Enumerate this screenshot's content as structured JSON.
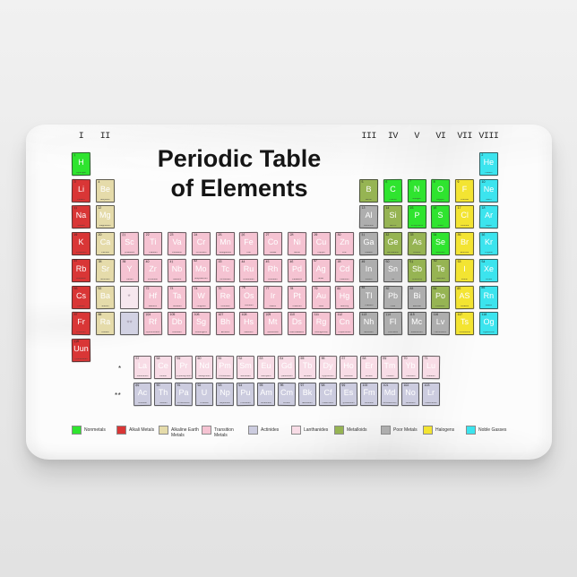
{
  "title": {
    "line1": "Periodic Table",
    "line2": "of Elements"
  },
  "group_labels": [
    {
      "text": "I",
      "col": 1
    },
    {
      "text": "II",
      "col": 2
    },
    {
      "text": "III",
      "col": 13
    },
    {
      "text": "IV",
      "col": 14
    },
    {
      "text": "V",
      "col": 15
    },
    {
      "text": "VI",
      "col": 16
    },
    {
      "text": "VII",
      "col": 17
    },
    {
      "text": "VIII",
      "col": 18
    }
  ],
  "category_colors": {
    "nonmetal": "#2fe42f",
    "alkali": "#d93636",
    "alkaline": "#e5dbaa",
    "transition": "#f5c3d2",
    "lanthanide": "#f8dce6",
    "actinide": "#ccccdf",
    "metalloid": "#96b453",
    "poor": "#aeaeae",
    "halogen": "#f3e432",
    "noble": "#3ce4ee",
    "lan_ph": "#f6e7ee",
    "act_ph": "#d2d2e3"
  },
  "elements": [
    {
      "n": "1",
      "sym": "H",
      "name": "Hydrogen",
      "cat": "nonmetal",
      "row": 1,
      "col": 1
    },
    {
      "n": "2",
      "sym": "He",
      "name": "Helium",
      "cat": "noble",
      "row": 1,
      "col": 18
    },
    {
      "n": "3",
      "sym": "Li",
      "name": "Lithium",
      "cat": "alkali",
      "row": 2,
      "col": 1
    },
    {
      "n": "4",
      "sym": "Be",
      "name": "Beryllium",
      "cat": "alkaline",
      "row": 2,
      "col": 2
    },
    {
      "n": "5",
      "sym": "B",
      "name": "Boron",
      "cat": "metalloid",
      "row": 2,
      "col": 13
    },
    {
      "n": "6",
      "sym": "C",
      "name": "Carbon",
      "cat": "nonmetal",
      "row": 2,
      "col": 14
    },
    {
      "n": "7",
      "sym": "N",
      "name": "Nitrogen",
      "cat": "nonmetal",
      "row": 2,
      "col": 15
    },
    {
      "n": "8",
      "sym": "O",
      "name": "Oxygen",
      "cat": "nonmetal",
      "row": 2,
      "col": 16
    },
    {
      "n": "9",
      "sym": "F",
      "name": "Fluorine",
      "cat": "halogen",
      "row": 2,
      "col": 17
    },
    {
      "n": "10",
      "sym": "Ne",
      "name": "Neon",
      "cat": "noble",
      "row": 2,
      "col": 18
    },
    {
      "n": "11",
      "sym": "Na",
      "name": "Sodium",
      "cat": "alkali",
      "row": 3,
      "col": 1
    },
    {
      "n": "12",
      "sym": "Mg",
      "name": "Magnesium",
      "cat": "alkaline",
      "row": 3,
      "col": 2
    },
    {
      "n": "13",
      "sym": "Al",
      "name": "Aluminum",
      "cat": "poor",
      "row": 3,
      "col": 13
    },
    {
      "n": "14",
      "sym": "Si",
      "name": "Silicon",
      "cat": "metalloid",
      "row": 3,
      "col": 14
    },
    {
      "n": "15",
      "sym": "P",
      "name": "Phosphorus",
      "cat": "nonmetal",
      "row": 3,
      "col": 15
    },
    {
      "n": "16",
      "sym": "S",
      "name": "Sulfur",
      "cat": "nonmetal",
      "row": 3,
      "col": 16
    },
    {
      "n": "17",
      "sym": "Cl",
      "name": "Chlorine",
      "cat": "halogen",
      "row": 3,
      "col": 17
    },
    {
      "n": "18",
      "sym": "Ar",
      "name": "Argon",
      "cat": "noble",
      "row": 3,
      "col": 18
    },
    {
      "n": "19",
      "sym": "K",
      "name": "Potassium",
      "cat": "alkali",
      "row": 4,
      "col": 1
    },
    {
      "n": "20",
      "sym": "Ca",
      "name": "Calcium",
      "cat": "alkaline",
      "row": 4,
      "col": 2
    },
    {
      "n": "21",
      "sym": "Sc",
      "name": "Scandium",
      "cat": "transition",
      "row": 4,
      "col": 3
    },
    {
      "n": "22",
      "sym": "Ti",
      "name": "Titanium",
      "cat": "transition",
      "row": 4,
      "col": 4
    },
    {
      "n": "23",
      "sym": "Va",
      "name": "Vanadium",
      "cat": "transition",
      "row": 4,
      "col": 5
    },
    {
      "n": "24",
      "sym": "Cr",
      "name": "Chromium",
      "cat": "transition",
      "row": 4,
      "col": 6
    },
    {
      "n": "25",
      "sym": "Mn",
      "name": "Manganese",
      "cat": "transition",
      "row": 4,
      "col": 7
    },
    {
      "n": "26",
      "sym": "Fe",
      "name": "Iron",
      "cat": "transition",
      "row": 4,
      "col": 8
    },
    {
      "n": "27",
      "sym": "Co",
      "name": "Cobalt",
      "cat": "transition",
      "row": 4,
      "col": 9
    },
    {
      "n": "28",
      "sym": "Ni",
      "name": "Nickel",
      "cat": "transition",
      "row": 4,
      "col": 10
    },
    {
      "n": "29",
      "sym": "Cu",
      "name": "Copper",
      "cat": "transition",
      "row": 4,
      "col": 11
    },
    {
      "n": "30",
      "sym": "Zn",
      "name": "Zinc",
      "cat": "transition",
      "row": 4,
      "col": 12
    },
    {
      "n": "31",
      "sym": "Ga",
      "name": "Gallium",
      "cat": "poor",
      "row": 4,
      "col": 13
    },
    {
      "n": "32",
      "sym": "Ge",
      "name": "Germanium",
      "cat": "metalloid",
      "row": 4,
      "col": 14
    },
    {
      "n": "33",
      "sym": "As",
      "name": "Arsenic",
      "cat": "metalloid",
      "row": 4,
      "col": 15
    },
    {
      "n": "34",
      "sym": "Se",
      "name": "Selenium",
      "cat": "nonmetal",
      "row": 4,
      "col": 16
    },
    {
      "n": "35",
      "sym": "Br",
      "name": "Bromine",
      "cat": "halogen",
      "row": 4,
      "col": 17
    },
    {
      "n": "36",
      "sym": "Kr",
      "name": "Krypton",
      "cat": "noble",
      "row": 4,
      "col": 18
    },
    {
      "n": "37",
      "sym": "Rb",
      "name": "Rubidium",
      "cat": "alkali",
      "row": 5,
      "col": 1
    },
    {
      "n": "38",
      "sym": "Sr",
      "name": "Strontium",
      "cat": "alkaline",
      "row": 5,
      "col": 2
    },
    {
      "n": "39",
      "sym": "Y",
      "name": "Yttrium",
      "cat": "transition",
      "row": 5,
      "col": 3
    },
    {
      "n": "40",
      "sym": "Zr",
      "name": "Zirconium",
      "cat": "transition",
      "row": 5,
      "col": 4
    },
    {
      "n": "41",
      "sym": "Nb",
      "name": "Niobium",
      "cat": "transition",
      "row": 5,
      "col": 5
    },
    {
      "n": "42",
      "sym": "Mo",
      "name": "Molybdenum",
      "cat": "transition",
      "row": 5,
      "col": 6
    },
    {
      "n": "43",
      "sym": "Tc",
      "name": "Technetium",
      "cat": "transition",
      "row": 5,
      "col": 7
    },
    {
      "n": "44",
      "sym": "Ru",
      "name": "Ruthenium",
      "cat": "transition",
      "row": 5,
      "col": 8
    },
    {
      "n": "45",
      "sym": "Rh",
      "name": "Rhodium",
      "cat": "transition",
      "row": 5,
      "col": 9
    },
    {
      "n": "46",
      "sym": "Pd",
      "name": "Palladium",
      "cat": "transition",
      "row": 5,
      "col": 10
    },
    {
      "n": "47",
      "sym": "Ag",
      "name": "Silver",
      "cat": "transition",
      "row": 5,
      "col": 11
    },
    {
      "n": "48",
      "sym": "Cd",
      "name": "Cadmium",
      "cat": "transition",
      "row": 5,
      "col": 12
    },
    {
      "n": "49",
      "sym": "In",
      "name": "Indium",
      "cat": "poor",
      "row": 5,
      "col": 13
    },
    {
      "n": "50",
      "sym": "Sn",
      "name": "Tin",
      "cat": "poor",
      "row": 5,
      "col": 14
    },
    {
      "n": "51",
      "sym": "Sb",
      "name": "Antimony",
      "cat": "metalloid",
      "row": 5,
      "col": 15
    },
    {
      "n": "52",
      "sym": "Te",
      "name": "Tellurium",
      "cat": "metalloid",
      "row": 5,
      "col": 16
    },
    {
      "n": "53",
      "sym": "I",
      "name": "Iodine",
      "cat": "halogen",
      "row": 5,
      "col": 17
    },
    {
      "n": "54",
      "sym": "Xe",
      "name": "Xenon",
      "cat": "noble",
      "row": 5,
      "col": 18
    },
    {
      "n": "55",
      "sym": "Cs",
      "name": "Cesium",
      "cat": "alkali",
      "row": 6,
      "col": 1
    },
    {
      "n": "56",
      "sym": "Ba",
      "name": "Barium",
      "cat": "alkaline",
      "row": 6,
      "col": 2
    },
    {
      "n": "",
      "sym": "*",
      "name": "",
      "cat": "lan_ph",
      "row": 6,
      "col": 3
    },
    {
      "n": "72",
      "sym": "Hf",
      "name": "Hafnium",
      "cat": "transition",
      "row": 6,
      "col": 4
    },
    {
      "n": "73",
      "sym": "Ta",
      "name": "Tantalum",
      "cat": "transition",
      "row": 6,
      "col": 5
    },
    {
      "n": "74",
      "sym": "W",
      "name": "Tungsten",
      "cat": "transition",
      "row": 6,
      "col": 6
    },
    {
      "n": "75",
      "sym": "Re",
      "name": "Rhenium",
      "cat": "transition",
      "row": 6,
      "col": 7
    },
    {
      "n": "76",
      "sym": "Os",
      "name": "Osmium",
      "cat": "transition",
      "row": 6,
      "col": 8
    },
    {
      "n": "77",
      "sym": "Ir",
      "name": "Iridium",
      "cat": "transition",
      "row": 6,
      "col": 9
    },
    {
      "n": "78",
      "sym": "Pt",
      "name": "Platinum",
      "cat": "transition",
      "row": 6,
      "col": 10
    },
    {
      "n": "79",
      "sym": "Au",
      "name": "Gold",
      "cat": "transition",
      "row": 6,
      "col": 11
    },
    {
      "n": "80",
      "sym": "Hg",
      "name": "Mercury",
      "cat": "transition",
      "row": 6,
      "col": 12
    },
    {
      "n": "81",
      "sym": "Tl",
      "name": "Thallium",
      "cat": "poor",
      "row": 6,
      "col": 13
    },
    {
      "n": "82",
      "sym": "Pb",
      "name": "Lead",
      "cat": "poor",
      "row": 6,
      "col": 14
    },
    {
      "n": "83",
      "sym": "Bi",
      "name": "Bismuth",
      "cat": "poor",
      "row": 6,
      "col": 15
    },
    {
      "n": "84",
      "sym": "Po",
      "name": "Polonium",
      "cat": "metalloid",
      "row": 6,
      "col": 16
    },
    {
      "n": "85",
      "sym": "AS",
      "name": "Astatine",
      "cat": "halogen",
      "row": 6,
      "col": 17
    },
    {
      "n": "86",
      "sym": "Rn",
      "name": "Radon",
      "cat": "noble",
      "row": 6,
      "col": 18
    },
    {
      "n": "87",
      "sym": "Fr",
      "name": "Francium",
      "cat": "alkali",
      "row": 7,
      "col": 1
    },
    {
      "n": "88",
      "sym": "Ra",
      "name": "Radium",
      "cat": "alkaline",
      "row": 7,
      "col": 2
    },
    {
      "n": "",
      "sym": "**",
      "name": "",
      "cat": "act_ph",
      "row": 7,
      "col": 3
    },
    {
      "n": "104",
      "sym": "Rf",
      "name": "Rutherfordium",
      "cat": "transition",
      "row": 7,
      "col": 4
    },
    {
      "n": "105",
      "sym": "Db",
      "name": "Dubnium",
      "cat": "transition",
      "row": 7,
      "col": 5
    },
    {
      "n": "106",
      "sym": "Sg",
      "name": "Seaborgium",
      "cat": "transition",
      "row": 7,
      "col": 6
    },
    {
      "n": "107",
      "sym": "Bh",
      "name": "Bohrium",
      "cat": "transition",
      "row": 7,
      "col": 7
    },
    {
      "n": "108",
      "sym": "Hs",
      "name": "Hassium",
      "cat": "transition",
      "row": 7,
      "col": 8
    },
    {
      "n": "109",
      "sym": "Mt",
      "name": "Meitnerium",
      "cat": "transition",
      "row": 7,
      "col": 9
    },
    {
      "n": "110",
      "sym": "Ds",
      "name": "Darmstadtium",
      "cat": "transition",
      "row": 7,
      "col": 10
    },
    {
      "n": "111",
      "sym": "Rg",
      "name": "Roentgenium",
      "cat": "transition",
      "row": 7,
      "col": 11
    },
    {
      "n": "112",
      "sym": "Cn",
      "name": "Copernicium",
      "cat": "transition",
      "row": 7,
      "col": 12
    },
    {
      "n": "113",
      "sym": "Nh",
      "name": "Nihonium",
      "cat": "poor",
      "row": 7,
      "col": 13
    },
    {
      "n": "114",
      "sym": "Fl",
      "name": "Flerovium",
      "cat": "poor",
      "row": 7,
      "col": 14
    },
    {
      "n": "115",
      "sym": "Mc",
      "name": "Moscovium",
      "cat": "poor",
      "row": 7,
      "col": 15
    },
    {
      "n": "116",
      "sym": "Lv",
      "name": "Livermorium",
      "cat": "poor",
      "row": 7,
      "col": 16
    },
    {
      "n": "117",
      "sym": "Ts",
      "name": "Tennessine",
      "cat": "halogen",
      "row": 7,
      "col": 17
    },
    {
      "n": "118",
      "sym": "Og",
      "name": "Oganesson",
      "cat": "noble",
      "row": 7,
      "col": 18
    },
    {
      "n": "119",
      "sym": "Uun",
      "name": "Ununennium",
      "cat": "alkali",
      "row": 8,
      "col": 1
    }
  ],
  "f_block": {
    "marker_lanthanide": "*",
    "marker_actinide": "**",
    "lanthanides": [
      {
        "n": "57",
        "sym": "La",
        "name": "Lanthanum"
      },
      {
        "n": "58",
        "sym": "Ce",
        "name": "Cerium"
      },
      {
        "n": "59",
        "sym": "Pr",
        "name": "Praseodymium"
      },
      {
        "n": "60",
        "sym": "Nd",
        "name": "Neodymium"
      },
      {
        "n": "61",
        "sym": "Pm",
        "name": "Promethium"
      },
      {
        "n": "62",
        "sym": "Sm",
        "name": "Samarium"
      },
      {
        "n": "63",
        "sym": "Eu",
        "name": "Europium"
      },
      {
        "n": "64",
        "sym": "Gd",
        "name": "Gadolinium"
      },
      {
        "n": "65",
        "sym": "Tb",
        "name": "Terbium"
      },
      {
        "n": "66",
        "sym": "Dy",
        "name": "Dysprosium"
      },
      {
        "n": "67",
        "sym": "Ho",
        "name": "Holmium"
      },
      {
        "n": "68",
        "sym": "Er",
        "name": "Erbium"
      },
      {
        "n": "69",
        "sym": "Tm",
        "name": "Thulium"
      },
      {
        "n": "70",
        "sym": "Yb",
        "name": "Ytterbium"
      },
      {
        "n": "71",
        "sym": "Lu",
        "name": "Lutetium"
      }
    ],
    "actinides": [
      {
        "n": "89",
        "sym": "Ac",
        "name": "Actinium"
      },
      {
        "n": "90",
        "sym": "Th",
        "name": "Thorium"
      },
      {
        "n": "91",
        "sym": "Pa",
        "name": "Protactinium"
      },
      {
        "n": "92",
        "sym": "U",
        "name": "Uranium"
      },
      {
        "n": "93",
        "sym": "Np",
        "name": "Neptunium"
      },
      {
        "n": "94",
        "sym": "Pu",
        "name": "Plutonium"
      },
      {
        "n": "95",
        "sym": "Am",
        "name": "Americium"
      },
      {
        "n": "96",
        "sym": "Cm",
        "name": "Curium"
      },
      {
        "n": "97",
        "sym": "Bk",
        "name": "Berkelium"
      },
      {
        "n": "98",
        "sym": "Cf",
        "name": "Californium"
      },
      {
        "n": "99",
        "sym": "Es",
        "name": "Einsteinium"
      },
      {
        "n": "100",
        "sym": "Fm",
        "name": "Fermium"
      },
      {
        "n": "101",
        "sym": "Md",
        "name": "Mendelevium"
      },
      {
        "n": "102",
        "sym": "No",
        "name": "Nobelium"
      },
      {
        "n": "103",
        "sym": "Lr",
        "name": "Lawrencium"
      }
    ]
  },
  "legend": [
    {
      "label": "Nonmetals",
      "cat": "nonmetal"
    },
    {
      "label": "Alkali Metals",
      "cat": "alkali"
    },
    {
      "label": "Alkaline Earth\nMetals",
      "cat": "alkaline"
    },
    {
      "label": "Transition\nMetals",
      "cat": "transition"
    },
    {
      "label": "Actinides",
      "cat": "actinide"
    },
    {
      "label": "Lanthanides",
      "cat": "lanthanide"
    },
    {
      "label": "Metalloids",
      "cat": "metalloid"
    },
    {
      "label": "Poor Metals",
      "cat": "poor"
    },
    {
      "label": "Halogens",
      "cat": "halogen"
    },
    {
      "label": "Noble Gasses",
      "cat": "noble"
    }
  ]
}
